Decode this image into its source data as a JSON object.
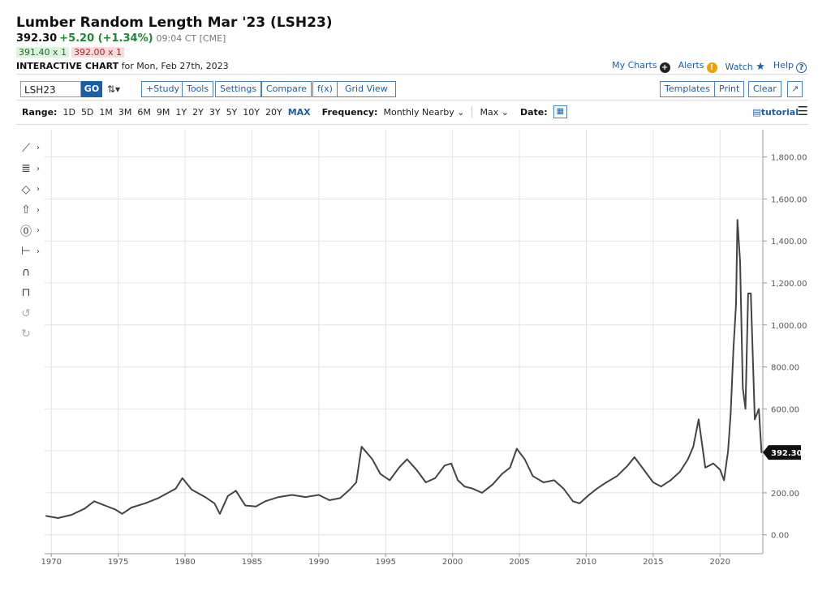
{
  "header": {
    "title": "Lumber Random Length Mar '23 (LSH23)",
    "last": "392.30",
    "change": "+5.20 (+1.34%)",
    "time": "09:04 CT [CME]",
    "bid": "391.40 x 1",
    "ask": "392.00 x 1",
    "chart_label": "INTERACTIVE CHART",
    "chart_date": "for Mon, Feb 27th, 2023"
  },
  "toplinks": {
    "my_charts": "My Charts",
    "alerts": "Alerts",
    "watch": "Watch",
    "help": "Help"
  },
  "toolbar": {
    "symbol": "LSH23",
    "go": "GO",
    "study": "+Study",
    "tools": "Tools",
    "settings": "Settings",
    "compare": "Compare",
    "fx": "f(x)",
    "grid_view": "Grid View",
    "templates": "Templates",
    "print": "Print",
    "clear": "Clear"
  },
  "range_bar": {
    "range_label": "Range:",
    "ranges": [
      "1D",
      "5D",
      "1M",
      "3M",
      "6M",
      "9M",
      "1Y",
      "2Y",
      "3Y",
      "5Y",
      "10Y",
      "20Y",
      "MAX"
    ],
    "active_range": "MAX",
    "frequency_label": "Frequency:",
    "frequency": "Monthly Nearby",
    "max_select": "Max",
    "date_label": "Date:",
    "tutorial": "tutorial"
  },
  "icons": [
    "line-tool-icon",
    "fib-tool-icon",
    "shape-tool-icon",
    "arrow-tool-icon",
    "annotation-tool-icon",
    "measure-tool-icon",
    "magnet-icon",
    "lock-icon",
    "undo-icon",
    "redo-icon"
  ],
  "colors": {
    "accent": "#1a5fa8",
    "up": "#1a8a2e",
    "price_series": "#444444",
    "last_price_tag": "#111111"
  },
  "chart_data": {
    "type": "line",
    "series_style": "ohlc-bars",
    "xlim": [
      1969.5,
      2023.2
    ],
    "ylim": [
      -90,
      1930
    ],
    "x_ticks": [
      1970,
      1975,
      1980,
      1985,
      1990,
      1995,
      2000,
      2005,
      2010,
      2015,
      2020
    ],
    "x_tick_labels": [
      "1970",
      "1975",
      "1980",
      "1985",
      "1990",
      "1995",
      "2000",
      "2005",
      "2010",
      "2015",
      "2020"
    ],
    "y_ticks": [
      0,
      200,
      400,
      600,
      800,
      1000,
      1200,
      1400,
      1600,
      1800
    ],
    "y_tick_labels": [
      "0.00",
      "200.00",
      "",
      "600.00",
      "800.00",
      "1,000.00",
      "1,200.00",
      "1,400.00",
      "1,600.00",
      "1,800.00"
    ],
    "y_axis_side": "right",
    "grid": true,
    "last_price": 392.3,
    "last_price_label": "392.30",
    "x": [
      1969.6,
      1970.5,
      1971.5,
      1972.5,
      1973.2,
      1974.0,
      1974.8,
      1975.3,
      1976.0,
      1977.0,
      1978.0,
      1979.3,
      1979.8,
      1980.5,
      1981.5,
      1982.2,
      1982.6,
      1983.2,
      1983.8,
      1984.5,
      1985.3,
      1986.0,
      1987.0,
      1988.0,
      1989.0,
      1990.0,
      1990.8,
      1991.6,
      1992.3,
      1992.8,
      1993.2,
      1993.6,
      1994.0,
      1994.6,
      1995.3,
      1996.0,
      1996.6,
      1997.3,
      1998.0,
      1998.7,
      1999.4,
      1999.9,
      2000.4,
      2000.9,
      2001.5,
      2002.2,
      2003.0,
      2003.7,
      2004.3,
      2004.8,
      2005.4,
      2006.0,
      2006.8,
      2007.6,
      2008.3,
      2009.0,
      2009.5,
      2010.2,
      2010.8,
      2011.5,
      2012.3,
      2013.1,
      2013.6,
      2014.3,
      2015.0,
      2015.6,
      2016.3,
      2017.0,
      2017.6,
      2018.0,
      2018.4,
      2018.9,
      2019.5,
      2020.0,
      2020.3,
      2020.6,
      2020.8,
      2021.0,
      2021.2,
      2021.3,
      2021.5,
      2021.7,
      2021.9,
      2022.1,
      2022.3,
      2022.6,
      2022.9,
      2023.1
    ],
    "y": [
      90,
      80,
      95,
      125,
      160,
      140,
      120,
      100,
      130,
      150,
      175,
      220,
      270,
      215,
      180,
      150,
      100,
      185,
      210,
      140,
      135,
      160,
      180,
      190,
      180,
      190,
      165,
      175,
      215,
      250,
      420,
      390,
      360,
      290,
      260,
      320,
      360,
      310,
      250,
      270,
      330,
      340,
      260,
      230,
      220,
      200,
      240,
      290,
      320,
      410,
      360,
      280,
      250,
      260,
      220,
      160,
      150,
      190,
      220,
      250,
      280,
      330,
      370,
      310,
      250,
      230,
      260,
      300,
      360,
      420,
      550,
      320,
      340,
      310,
      260,
      400,
      580,
      880,
      1100,
      1500,
      1300,
      700,
      600,
      1150,
      1150,
      550,
      600,
      392
    ]
  }
}
